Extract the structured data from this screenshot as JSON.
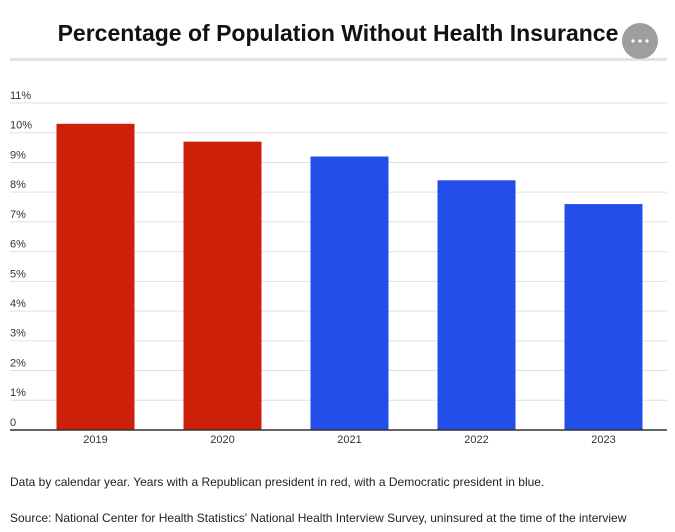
{
  "chart_data": {
    "type": "bar",
    "title": "Percentage of Population Without Health Insurance",
    "categories": [
      "2019",
      "2020",
      "2021",
      "2022",
      "2023"
    ],
    "values": [
      10.3,
      9.7,
      9.2,
      8.4,
      7.6
    ],
    "colors": [
      "#cc2108",
      "#cc2108",
      "#234de8",
      "#234de8",
      "#234de8"
    ],
    "ylim": [
      0,
      11
    ],
    "yticks": [
      0,
      {
        "value": 1,
        "label": "1%"
      },
      {
        "value": 2,
        "label": "2%"
      },
      {
        "value": 3,
        "label": "3%"
      },
      {
        "value": 4,
        "label": "4%"
      },
      {
        "value": 5,
        "label": "5%"
      },
      {
        "value": 6,
        "label": "6%"
      },
      {
        "value": 7,
        "label": "7%"
      },
      {
        "value": 8,
        "label": "8%"
      },
      {
        "value": 9,
        "label": "9%"
      },
      {
        "value": 10,
        "label": "10%"
      },
      {
        "value": 11,
        "label": "11%"
      }
    ],
    "grid": true,
    "note": "Data by calendar year. Years with a Republican president in red, with a Democratic president in blue.",
    "source": "Source: National Center for Health Statistics' National Health Interview Survey, uninsured at the time of the interview"
  }
}
